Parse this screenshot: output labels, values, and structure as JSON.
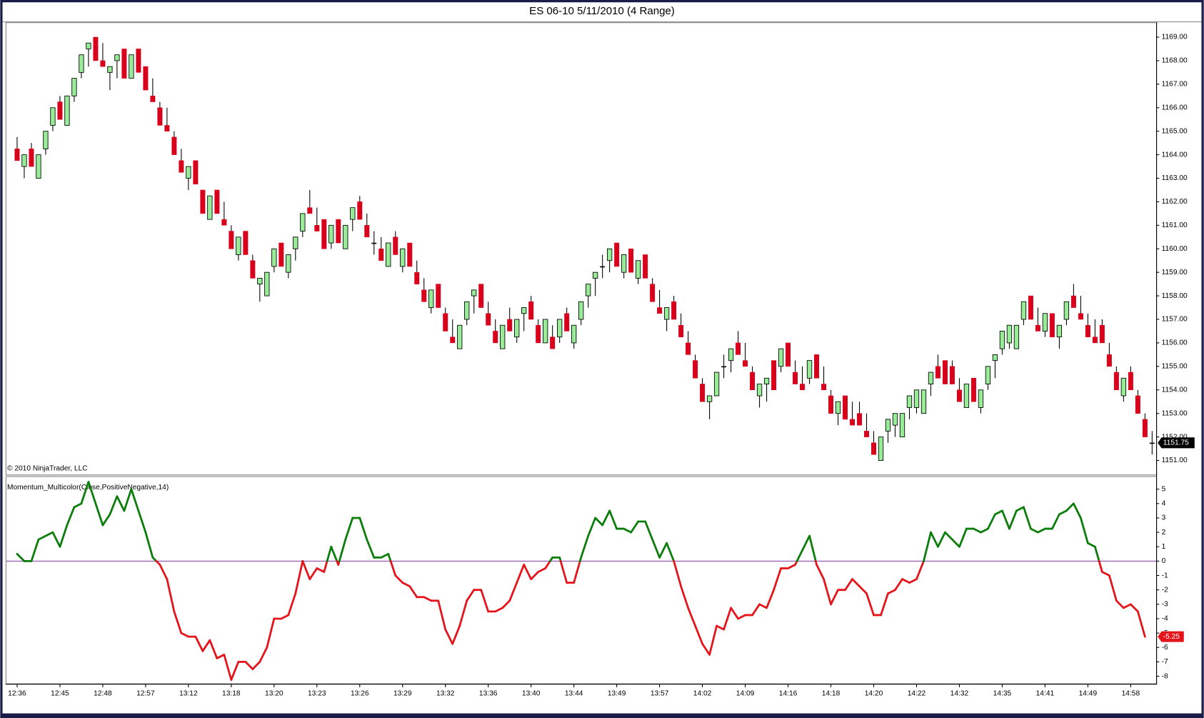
{
  "window_title": "ES 06-10  5/11/2010 (4 Range)",
  "chart_data": [
    {
      "type": "candlestick",
      "annotation": "© 2010 NinjaTrader, LLC",
      "up_color": "#98ec98",
      "down_color": "#d9001b",
      "open": [
        1164.25,
        1163.5,
        1164.25,
        1163.0,
        1164.25,
        1165.25,
        1166.25,
        1165.25,
        1166.5,
        1167.5,
        1168.5,
        1169.0,
        1168.0,
        1167.5,
        1168.0,
        1168.5,
        1167.25,
        1168.5,
        1167.75,
        1166.5,
        1166.0,
        1165.25,
        1164.75,
        1163.75,
        1163.0,
        1163.75,
        1162.5,
        1161.25,
        1162.5,
        1161.25,
        1160.75,
        1159.75,
        1160.75,
        1159.5,
        1158.5,
        1158.0,
        1159.25,
        1160.25,
        1159.0,
        1160.0,
        1160.75,
        1161.75,
        1161.0,
        1161.25,
        1160.25,
        1161.25,
        1160.0,
        1161.25,
        1162.0,
        1161.0,
        1160.25,
        1160.0,
        1159.25,
        1160.5,
        1159.25,
        1160.25,
        1159.0,
        1158.25,
        1157.5,
        1158.5,
        1157.25,
        1156.25,
        1155.75,
        1157.0,
        1158.0,
        1158.5,
        1157.25,
        1156.5,
        1155.75,
        1157.0,
        1156.25,
        1157.25,
        1157.75,
        1156.75,
        1156.0,
        1156.25,
        1156.25,
        1157.25,
        1156.0,
        1157.0,
        1158.0,
        1158.75,
        1159.25,
        1159.5,
        1160.25,
        1159.0,
        1160.0,
        1158.75,
        1159.75,
        1158.5,
        1157.5,
        1157.0,
        1157.75,
        1156.75,
        1156.0,
        1155.25,
        1154.25,
        1153.5,
        1153.75,
        1155.0,
        1155.25,
        1156.0,
        1155.25,
        1154.75,
        1153.75,
        1154.25,
        1155.25,
        1155.0,
        1156.0,
        1154.75,
        1154.25,
        1154.5,
        1155.5,
        1154.25,
        1153.75,
        1153.0,
        1153.75,
        1152.75,
        1153.0,
        1152.25,
        1151.75,
        1151.0,
        1152.25,
        1152.5,
        1152.0,
        1153.25,
        1153.25,
        1153.0,
        1154.25,
        1155.0,
        1155.25,
        1155.0,
        1154.0,
        1153.25,
        1154.5,
        1153.25,
        1154.25,
        1155.25,
        1155.75,
        1156.0,
        1155.75,
        1157.0,
        1158.0,
        1156.75,
        1156.5,
        1157.25,
        1156.25,
        1157.0,
        1158.0,
        1157.25,
        1156.75,
        1156.25,
        1156.75,
        1155.5,
        1154.75,
        1153.75,
        1154.75,
        1153.75,
        1152.75,
        1151.75
      ],
      "high": [
        1164.75,
        1164.0,
        1164.5,
        1164.0,
        1165.0,
        1166.0,
        1166.5,
        1166.5,
        1167.25,
        1168.25,
        1168.75,
        1169.0,
        1168.75,
        1167.75,
        1168.25,
        1168.5,
        1168.25,
        1168.5,
        1167.75,
        1167.25,
        1166.25,
        1166.0,
        1165.0,
        1164.25,
        1163.5,
        1163.75,
        1162.5,
        1162.25,
        1162.5,
        1162.0,
        1161.0,
        1160.5,
        1160.75,
        1159.75,
        1158.75,
        1159.0,
        1160.0,
        1160.25,
        1159.75,
        1160.5,
        1161.5,
        1162.5,
        1161.75,
        1161.25,
        1161.0,
        1161.25,
        1161.0,
        1161.75,
        1162.25,
        1161.5,
        1160.75,
        1160.5,
        1160.25,
        1160.75,
        1160.0,
        1160.25,
        1159.5,
        1158.75,
        1158.25,
        1158.5,
        1157.5,
        1157.0,
        1156.75,
        1157.75,
        1158.25,
        1158.5,
        1157.75,
        1157.0,
        1156.75,
        1157.5,
        1157.0,
        1157.5,
        1158.0,
        1157.0,
        1157.0,
        1156.75,
        1157.0,
        1157.5,
        1156.75,
        1157.75,
        1158.5,
        1159.0,
        1159.75,
        1160.0,
        1160.25,
        1159.75,
        1160.0,
        1159.5,
        1159.75,
        1158.75,
        1158.25,
        1157.5,
        1158.0,
        1157.25,
        1156.5,
        1155.5,
        1154.5,
        1153.75,
        1154.75,
        1155.5,
        1155.75,
        1156.5,
        1156.0,
        1155.0,
        1154.25,
        1154.5,
        1155.25,
        1155.75,
        1156.0,
        1155.25,
        1155.0,
        1155.25,
        1155.5,
        1155.0,
        1154.0,
        1153.5,
        1153.75,
        1153.5,
        1153.5,
        1153.0,
        1152.25,
        1152.0,
        1152.75,
        1153.0,
        1153.0,
        1153.75,
        1154.0,
        1154.0,
        1154.75,
        1155.5,
        1155.25,
        1155.25,
        1154.5,
        1154.25,
        1154.5,
        1154.0,
        1155.0,
        1155.5,
        1156.5,
        1156.75,
        1156.75,
        1157.75,
        1158.0,
        1157.5,
        1157.25,
        1157.25,
        1156.75,
        1157.75,
        1158.5,
        1158.0,
        1157.25,
        1157.0,
        1157.0,
        1156.0,
        1155.0,
        1154.5,
        1155.0,
        1154.0,
        1153.0,
        1152.25
      ],
      "low": [
        1163.75,
        1163.0,
        1163.5,
        1163.0,
        1164.0,
        1165.0,
        1165.5,
        1165.25,
        1166.25,
        1167.25,
        1167.75,
        1168.0,
        1167.75,
        1166.75,
        1167.25,
        1167.25,
        1167.25,
        1167.5,
        1166.75,
        1166.25,
        1165.25,
        1165.0,
        1164.0,
        1163.25,
        1162.5,
        1162.75,
        1161.5,
        1161.25,
        1161.5,
        1161.0,
        1160.0,
        1159.5,
        1159.75,
        1158.75,
        1157.75,
        1158.0,
        1159.0,
        1159.25,
        1158.75,
        1159.5,
        1160.5,
        1161.5,
        1160.75,
        1160.0,
        1160.0,
        1160.25,
        1160.0,
        1160.75,
        1161.25,
        1160.5,
        1159.75,
        1159.5,
        1159.25,
        1159.75,
        1159.0,
        1159.25,
        1158.5,
        1157.75,
        1157.25,
        1157.5,
        1156.5,
        1156.0,
        1155.75,
        1156.75,
        1157.25,
        1157.5,
        1156.75,
        1156.0,
        1155.75,
        1156.5,
        1156.0,
        1156.5,
        1157.0,
        1156.0,
        1156.0,
        1155.75,
        1156.0,
        1156.5,
        1155.75,
        1156.75,
        1157.5,
        1158.0,
        1158.75,
        1159.0,
        1159.25,
        1158.75,
        1159.0,
        1158.5,
        1158.75,
        1157.75,
        1157.25,
        1156.5,
        1157.0,
        1156.25,
        1155.5,
        1154.5,
        1153.5,
        1152.75,
        1153.75,
        1154.5,
        1154.75,
        1155.5,
        1155.0,
        1154.0,
        1153.25,
        1153.5,
        1154.0,
        1154.75,
        1155.0,
        1154.25,
        1154.0,
        1154.25,
        1154.5,
        1154.0,
        1153.0,
        1152.5,
        1152.75,
        1152.5,
        1152.5,
        1152.0,
        1151.25,
        1151.0,
        1151.75,
        1152.0,
        1152.0,
        1152.75,
        1153.0,
        1153.0,
        1153.75,
        1154.5,
        1154.25,
        1154.25,
        1153.5,
        1153.25,
        1153.5,
        1153.0,
        1154.0,
        1154.5,
        1155.5,
        1155.75,
        1155.75,
        1156.75,
        1157.0,
        1156.5,
        1156.25,
        1156.25,
        1155.75,
        1156.75,
        1157.5,
        1157.0,
        1156.25,
        1156.0,
        1156.0,
        1155.0,
        1154.0,
        1153.5,
        1154.0,
        1153.0,
        1152.0,
        1151.25
      ],
      "close": [
        1163.75,
        1164.0,
        1163.5,
        1164.0,
        1165.0,
        1166.0,
        1165.5,
        1166.5,
        1167.25,
        1168.25,
        1168.75,
        1168.0,
        1167.75,
        1167.75,
        1168.25,
        1167.25,
        1168.25,
        1167.5,
        1166.75,
        1166.25,
        1165.25,
        1165.0,
        1164.0,
        1163.25,
        1163.5,
        1162.75,
        1161.5,
        1162.25,
        1161.5,
        1161.0,
        1160.0,
        1160.5,
        1159.75,
        1158.75,
        1158.75,
        1159.0,
        1160.0,
        1159.25,
        1159.75,
        1160.5,
        1161.5,
        1161.5,
        1160.75,
        1160.0,
        1161.0,
        1160.25,
        1161.0,
        1161.75,
        1161.25,
        1160.5,
        1160.25,
        1159.5,
        1160.25,
        1159.75,
        1160.0,
        1159.25,
        1158.5,
        1157.75,
        1158.25,
        1157.5,
        1156.5,
        1156.0,
        1156.75,
        1157.75,
        1158.25,
        1157.5,
        1156.75,
        1156.0,
        1156.75,
        1156.5,
        1157.0,
        1157.5,
        1157.0,
        1156.0,
        1157.0,
        1155.75,
        1157.0,
        1156.5,
        1156.75,
        1157.75,
        1158.5,
        1159.0,
        1159.25,
        1160.0,
        1159.25,
        1159.75,
        1159.0,
        1159.5,
        1158.75,
        1157.75,
        1157.25,
        1157.5,
        1157.0,
        1156.25,
        1155.5,
        1154.5,
        1153.5,
        1153.75,
        1154.75,
        1155.0,
        1155.75,
        1155.5,
        1155.0,
        1154.0,
        1154.25,
        1154.5,
        1154.0,
        1155.75,
        1155.0,
        1154.25,
        1154.0,
        1155.25,
        1154.5,
        1154.0,
        1153.0,
        1153.5,
        1152.75,
        1152.5,
        1152.5,
        1152.0,
        1151.25,
        1152.0,
        1152.75,
        1153.0,
        1153.0,
        1153.75,
        1154.0,
        1154.0,
        1154.75,
        1154.5,
        1154.25,
        1154.25,
        1153.5,
        1154.25,
        1153.5,
        1154.0,
        1155.0,
        1155.5,
        1156.5,
        1156.75,
        1156.75,
        1157.75,
        1157.0,
        1156.5,
        1157.25,
        1156.25,
        1156.75,
        1157.75,
        1157.5,
        1157.0,
        1156.25,
        1156.0,
        1156.0,
        1155.0,
        1154.0,
        1154.5,
        1154.0,
        1153.0,
        1152.0,
        1151.75
      ],
      "last_value": 1151.75,
      "ylim": [
        1150.4,
        1169.6
      ],
      "yticks": [
        {
          "value": 1151,
          "label": "1151.00"
        },
        {
          "value": 1152,
          "label": "1152.00"
        },
        {
          "value": 1153,
          "label": "1153.00"
        },
        {
          "value": 1154,
          "label": "1154.00"
        },
        {
          "value": 1155,
          "label": "1155.00"
        },
        {
          "value": 1156,
          "label": "1156.00"
        },
        {
          "value": 1157,
          "label": "1157.00"
        },
        {
          "value": 1158,
          "label": "1158.00"
        },
        {
          "value": 1159,
          "label": "1159.00"
        },
        {
          "value": 1160,
          "label": "1160.00"
        },
        {
          "value": 1161,
          "label": "1161.00"
        },
        {
          "value": 1162,
          "label": "1162.00"
        },
        {
          "value": 1163,
          "label": "1163.00"
        },
        {
          "value": 1164,
          "label": "1164.00"
        },
        {
          "value": 1165,
          "label": "1165.00"
        },
        {
          "value": 1166,
          "label": "1166.00"
        },
        {
          "value": 1167,
          "label": "1167.00"
        },
        {
          "value": 1168,
          "label": "1168.00"
        },
        {
          "value": 1169,
          "label": "1169.00"
        }
      ]
    },
    {
      "type": "line",
      "title": "Momentum_Multicolor(Close,PositiveNegative,14)",
      "positive_color": "#0a7d0a",
      "negative_color": "#e5141b",
      "zero_line_color": "#8a4fa8",
      "categories": [
        "12:36",
        null,
        null,
        null,
        null,
        null,
        "12:45",
        null,
        null,
        null,
        null,
        null,
        "12:48",
        null,
        null,
        null,
        null,
        null,
        "12:57",
        null,
        null,
        null,
        null,
        null,
        "13:12",
        null,
        null,
        null,
        null,
        null,
        "13:18",
        null,
        null,
        null,
        null,
        null,
        "13:20",
        null,
        null,
        null,
        null,
        null,
        "13:23",
        null,
        null,
        null,
        null,
        null,
        "13:26",
        null,
        null,
        null,
        null,
        null,
        "13:29",
        null,
        null,
        null,
        null,
        null,
        "13:32",
        null,
        null,
        null,
        null,
        null,
        "13:36",
        null,
        null,
        null,
        null,
        null,
        "13:40",
        null,
        null,
        null,
        null,
        null,
        "13:44",
        null,
        null,
        null,
        null,
        null,
        "13:49",
        null,
        null,
        null,
        null,
        null,
        "13:57",
        null,
        null,
        null,
        null,
        null,
        "14:02",
        null,
        null,
        null,
        null,
        null,
        "14:09",
        null,
        null,
        null,
        null,
        null,
        "14:16",
        null,
        null,
        null,
        null,
        null,
        "14:18",
        null,
        null,
        null,
        null,
        null,
        "14:20",
        null,
        null,
        null,
        null,
        null,
        "14:22",
        null,
        null,
        null,
        null,
        null,
        "14:32",
        null,
        null,
        null,
        null,
        null,
        "14:35",
        null,
        null,
        null,
        null,
        null,
        "14:41",
        null,
        null,
        null,
        null,
        null,
        "14:49",
        null,
        null,
        null,
        null,
        null,
        "14:58",
        null,
        null,
        null
      ],
      "values": [
        0.5,
        0,
        0,
        1.5,
        1.75,
        2,
        1,
        2.5,
        3.75,
        4,
        5.5,
        4,
        2.5,
        3.25,
        4.5,
        3.5,
        5,
        3.5,
        2,
        0.25,
        -0.25,
        -1.25,
        -3.5,
        -5,
        -5.25,
        -5.25,
        -6.25,
        -5.5,
        -6.75,
        -6.5,
        -8.25,
        -7,
        -7,
        -7.5,
        -7,
        -6,
        -4,
        -4,
        -3.75,
        -2.25,
        0,
        -1.25,
        -0.5,
        -0.75,
        1,
        -0.25,
        1.5,
        3,
        3,
        1.5,
        0.25,
        0.25,
        0.5,
        -1,
        -1.5,
        -1.75,
        -2.5,
        -2.5,
        -2.75,
        -2.75,
        -4.75,
        -5.75,
        -4.5,
        -2.75,
        -2,
        -2,
        -3.5,
        -3.5,
        -3.25,
        -2.75,
        -1.5,
        -0.25,
        -1.25,
        -0.75,
        -0.5,
        0.25,
        0.25,
        -1.5,
        -1.5,
        0.25,
        1.75,
        3,
        2.5,
        3.5,
        2.25,
        2.25,
        2,
        2.75,
        2.75,
        1.5,
        0.25,
        1.25,
        0,
        -1.75,
        -3.25,
        -4.5,
        -5.75,
        -6.5,
        -4.5,
        -4.75,
        -3.25,
        -4,
        -3.75,
        -3.75,
        -3,
        -3.25,
        -2,
        -0.5,
        -0.5,
        -0.25,
        0.75,
        1.75,
        -0.25,
        -1.25,
        -3,
        -2,
        -2,
        -1.25,
        -1.75,
        -2.25,
        -3.75,
        -3.75,
        -2.25,
        -2,
        -1.25,
        -1.5,
        -1.25,
        0,
        2,
        1,
        2,
        1.5,
        1,
        2.25,
        2.25,
        2,
        2.25,
        3.25,
        3.5,
        2.25,
        3.5,
        3.75,
        2.25,
        2,
        2.25,
        2.25,
        3.25,
        3.5,
        4,
        3,
        1.25,
        1,
        -0.75,
        -1,
        -2.75,
        -3.25,
        -3,
        -3.5,
        -5.25,
        null
      ],
      "last_value": -5.25,
      "ylim": [
        -8.5,
        5.8
      ],
      "yticks": [
        -8,
        -7,
        -6,
        -5,
        -4,
        -3,
        -2,
        -1,
        0,
        1,
        2,
        3,
        4,
        5
      ]
    }
  ]
}
